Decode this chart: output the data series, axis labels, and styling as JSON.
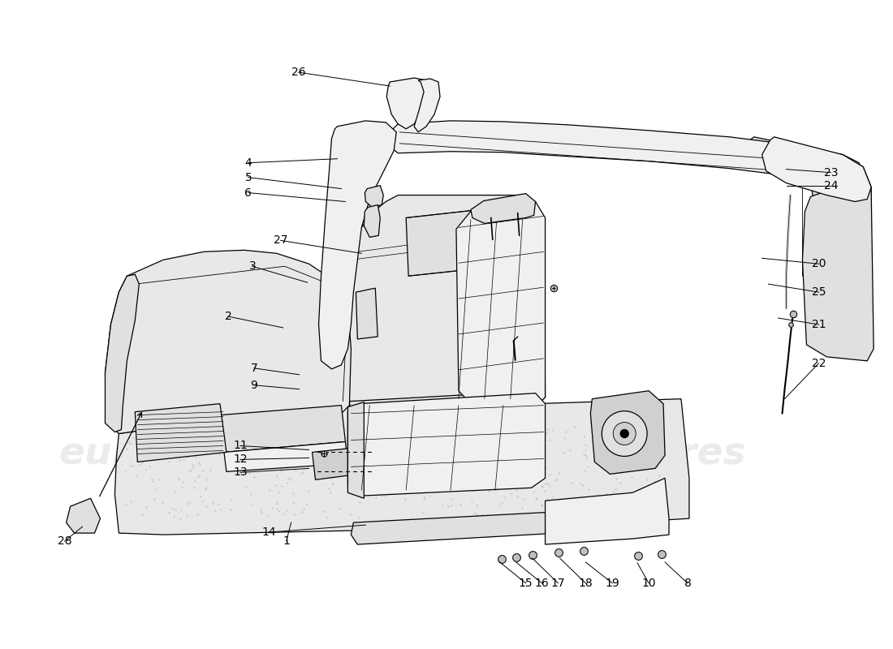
{
  "bg": "#ffffff",
  "lc": "#000000",
  "lw": 0.9,
  "wm_color": "#cccccc",
  "wm_alpha": 0.38,
  "fs": 10,
  "callouts": [
    [
      1,
      352,
      668,
      358,
      645,
      "r"
    ],
    [
      2,
      280,
      390,
      348,
      404,
      "r"
    ],
    [
      3,
      310,
      328,
      378,
      348,
      "r"
    ],
    [
      4,
      305,
      200,
      415,
      195,
      "r"
    ],
    [
      5,
      305,
      218,
      420,
      232,
      "r"
    ],
    [
      6,
      305,
      237,
      425,
      248,
      "r"
    ],
    [
      7,
      312,
      454,
      368,
      462,
      "r"
    ],
    [
      8,
      848,
      720,
      820,
      694,
      "r"
    ],
    [
      9,
      312,
      475,
      368,
      480,
      "r"
    ],
    [
      10,
      800,
      720,
      786,
      695,
      "r"
    ],
    [
      11,
      295,
      550,
      380,
      555,
      "r"
    ],
    [
      12,
      295,
      567,
      380,
      565,
      "r"
    ],
    [
      13,
      295,
      583,
      380,
      578,
      "r"
    ],
    [
      14,
      330,
      657,
      450,
      648,
      "r"
    ],
    [
      15,
      648,
      720,
      616,
      694,
      "r"
    ],
    [
      16,
      668,
      720,
      636,
      694,
      "r"
    ],
    [
      17,
      688,
      720,
      656,
      689,
      "r"
    ],
    [
      18,
      722,
      720,
      690,
      689,
      "r"
    ],
    [
      19,
      755,
      720,
      722,
      694,
      "r"
    ],
    [
      20,
      1010,
      325,
      940,
      318,
      "l"
    ],
    [
      21,
      1010,
      400,
      960,
      392,
      "l"
    ],
    [
      22,
      1010,
      448,
      968,
      492,
      "l"
    ],
    [
      23,
      1025,
      212,
      970,
      208,
      "l"
    ],
    [
      24,
      1025,
      228,
      970,
      228,
      "l"
    ],
    [
      25,
      1010,
      360,
      948,
      350,
      "l"
    ],
    [
      26,
      367,
      88,
      480,
      105,
      "r"
    ],
    [
      27,
      345,
      296,
      445,
      312,
      "r"
    ],
    [
      28,
      78,
      668,
      100,
      650,
      "r"
    ]
  ]
}
